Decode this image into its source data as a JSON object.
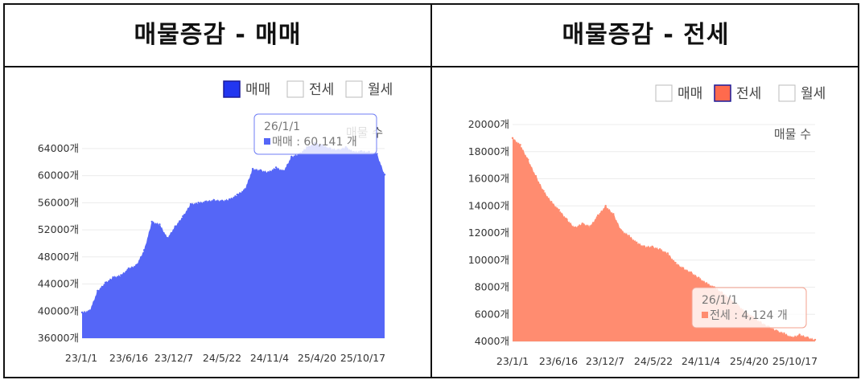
{
  "panels": [
    {
      "title": "매물증감 - 매매",
      "legend": [
        {
          "label": "매매",
          "color": "#2236f0",
          "active": true
        },
        {
          "label": "전세",
          "color": "#ff6a4d",
          "active": false
        },
        {
          "label": "월세",
          "color": "#999999",
          "active": false
        }
      ],
      "corner_label": "매물 수",
      "tooltip": {
        "date": "26/1/1",
        "series": "매매",
        "value_text": "60,141",
        "unit": "개"
      },
      "fill_color": "#5566f7",
      "tooltip_border": "#6f7ef5"
    },
    {
      "title": "매물증감 - 전세",
      "legend": [
        {
          "label": "매매",
          "color": "#2236f0",
          "active": false
        },
        {
          "label": "전세",
          "color": "#ff6a4d",
          "active": true
        },
        {
          "label": "월세",
          "color": "#999999",
          "active": false
        }
      ],
      "corner_label": "매물 수",
      "tooltip": {
        "date": "26/1/1",
        "series": "전세",
        "value_text": "4,124",
        "unit": "개"
      },
      "fill_color": "#ff8c70",
      "tooltip_border": "#f3a08e"
    }
  ],
  "chart_data": [
    {
      "type": "area",
      "title": "매물증감 - 매매",
      "series": [
        {
          "name": "매매",
          "x": [
            "23/1/1",
            "23/2/1",
            "23/3/1",
            "23/4/1",
            "23/5/1",
            "23/6/1",
            "23/6/16",
            "23/7/15",
            "23/8/15",
            "23/9/15",
            "23/10/15",
            "23/11/15",
            "23/12/7",
            "24/1/15",
            "24/2/15",
            "24/3/15",
            "24/4/15",
            "24/5/1",
            "24/5/22",
            "24/6/15",
            "24/7/15",
            "24/8/15",
            "24/9/15",
            "24/10/15",
            "24/11/4",
            "24/12/1",
            "25/1/1",
            "25/2/1",
            "25/3/1",
            "25/4/1",
            "25/4/20",
            "25/5/15",
            "25/6/15",
            "25/7/15",
            "25/8/15",
            "25/9/15",
            "25/10/17",
            "25/11/15",
            "25/12/15",
            "26/1/1"
          ],
          "values": [
            39800,
            40100,
            43000,
            44200,
            45000,
            45300,
            46300,
            46800,
            49000,
            53200,
            52800,
            50800,
            52500,
            54000,
            55800,
            56000,
            56200,
            56400,
            56300,
            56500,
            57200,
            58000,
            61000,
            60800,
            60500,
            61200,
            60700,
            62800,
            63200,
            64200,
            64800,
            64500,
            64000,
            63800,
            64200,
            63500,
            63600,
            63500,
            63200,
            60141
          ]
        }
      ],
      "ylabel": "매물 수",
      "ylim": [
        36000,
        66000
      ],
      "y_ticks": [
        "36000개",
        "40000개",
        "44000개",
        "48000개",
        "52000개",
        "56000개",
        "60000개",
        "64000개"
      ],
      "x_ticks": [
        "23/1/1",
        "23/6/16",
        "23/12/7",
        "24/5/22",
        "24/11/4",
        "25/4/20",
        "25/10/17"
      ],
      "legend_position": "top-right",
      "grid": true
    },
    {
      "type": "area",
      "title": "매물증감 - 전세",
      "series": [
        {
          "name": "전세",
          "x": [
            "23/1/1",
            "23/2/1",
            "23/3/1",
            "23/4/1",
            "23/5/1",
            "23/6/1",
            "23/6/16",
            "23/7/15",
            "23/8/15",
            "23/9/15",
            "23/10/15",
            "23/11/15",
            "23/12/7",
            "24/1/15",
            "24/2/15",
            "24/3/15",
            "24/4/15",
            "24/5/1",
            "24/5/22",
            "24/6/15",
            "24/7/15",
            "24/8/15",
            "24/9/15",
            "24/10/15",
            "24/11/4",
            "24/12/1",
            "25/1/1",
            "25/2/1",
            "25/3/1",
            "25/4/1",
            "25/4/20",
            "25/5/15",
            "25/6/15",
            "25/7/15",
            "25/8/15",
            "25/9/15",
            "25/10/17",
            "25/11/15",
            "25/12/15",
            "26/1/1"
          ],
          "values": [
            19000,
            18500,
            17400,
            16200,
            15100,
            14300,
            13700,
            13000,
            12400,
            12700,
            12500,
            13300,
            14000,
            13400,
            12200,
            11800,
            11300,
            11000,
            11000,
            10800,
            10500,
            9800,
            9400,
            9100,
            8700,
            8300,
            8000,
            7600,
            7200,
            6700,
            6200,
            5800,
            5400,
            5100,
            4800,
            4600,
            4300,
            4500,
            4300,
            4124
          ]
        }
      ],
      "ylabel": "매물 수",
      "ylim": [
        4000,
        20000
      ],
      "y_ticks": [
        "4000개",
        "6000개",
        "8000개",
        "10000개",
        "12000개",
        "14000개",
        "16000개",
        "18000개",
        "20000개"
      ],
      "x_ticks": [
        "23/1/1",
        "23/6/16",
        "23/12/7",
        "24/5/22",
        "24/11/4",
        "25/4/20",
        "25/10/17"
      ],
      "legend_position": "top-right",
      "grid": true
    }
  ]
}
